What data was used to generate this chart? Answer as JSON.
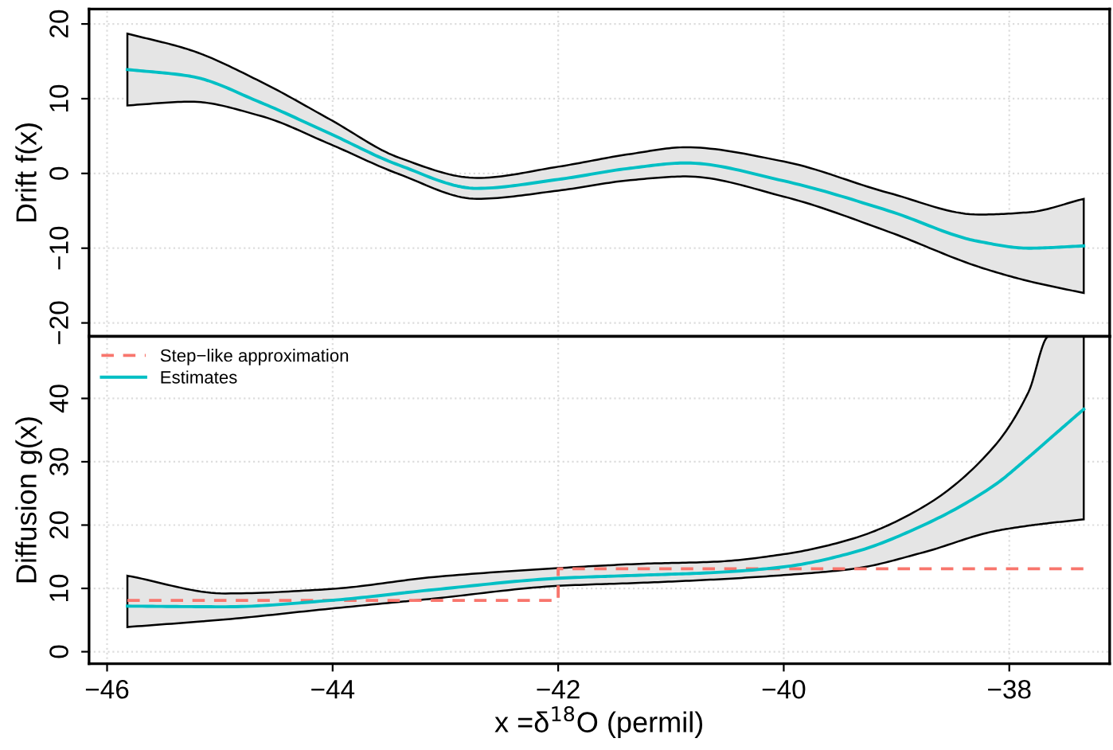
{
  "chart_data": [
    {
      "type": "line",
      "ylabel": "Drift f(x)",
      "xlim": [
        -46.16,
        -37.11
      ],
      "ylim": [
        -21.8,
        22
      ],
      "xticks": [
        {
          "value": -46,
          "label": null
        },
        {
          "value": -44,
          "label": null
        },
        {
          "value": -42,
          "label": null
        },
        {
          "value": -40,
          "label": null
        },
        {
          "value": -38,
          "label": null
        }
      ],
      "yticks": [
        {
          "value": -20,
          "label": "−20"
        },
        {
          "value": -10,
          "label": "−10"
        },
        0,
        10,
        20
      ],
      "tick_labels": "y",
      "grid": true,
      "legend": false,
      "series": [
        {
          "color": "#00bfc4",
          "x": [
            -45.82,
            -45.26,
            -44.64,
            -44.02,
            -43.41,
            -42.72,
            -42.0,
            -41.36,
            -40.87,
            -40.0,
            -39.07,
            -38.27,
            -37.83,
            -37.34
          ],
          "values": [
            13.9,
            13.0,
            9.5,
            5.3,
            1.1,
            -2.0,
            -0.8,
            0.7,
            1.4,
            -1.0,
            -5.0,
            -9.1,
            -10.0,
            -9.7
          ],
          "lower": [
            9.1,
            9.6,
            7.7,
            3.9,
            -0.1,
            -3.4,
            -2.3,
            -0.9,
            -0.4,
            -3.1,
            -7.8,
            -12.5,
            -14.4,
            -16.0
          ],
          "upper": [
            18.7,
            16.5,
            12.3,
            7.2,
            2.1,
            -0.6,
            0.9,
            2.6,
            3.5,
            1.6,
            -2.6,
            -5.5,
            -5.2,
            -3.4
          ]
        }
      ]
    },
    {
      "type": "line",
      "xlabel": "x =δ$^{18}$O (permil)",
      "ylabel": "Diffusion g(x)",
      "xlim": [
        -46.16,
        -37.11
      ],
      "ylim": [
        -1.9,
        49.8
      ],
      "xticks": [
        {
          "value": -46,
          "label": "−46"
        },
        {
          "value": -44,
          "label": "−44"
        },
        {
          "value": -42,
          "label": "−42"
        },
        {
          "value": -40,
          "label": "−40"
        },
        {
          "value": -38,
          "label": "−38"
        }
      ],
      "yticks": [
        0,
        10,
        20,
        30,
        40
      ],
      "grid": true,
      "legend": "top left",
      "series": [
        {
          "name": "Step−like approximation",
          "type": "step",
          "color": "#f8766d",
          "line_style": "dashed",
          "x": [
            -45.82,
            -42.0,
            -37.34
          ],
          "values": [
            8.1,
            13.1,
            13.1
          ]
        },
        {
          "name": "Estimates",
          "color": "#00bfc4",
          "x": [
            -45.82,
            -44.95,
            -44.02,
            -43.1,
            -42.0,
            -41.24,
            -40.62,
            -40.0,
            -39.38,
            -38.76,
            -38.14,
            -37.83,
            -37.65,
            -37.34
          ],
          "values": [
            7.2,
            7.1,
            8.1,
            9.8,
            11.6,
            12.1,
            12.5,
            13.4,
            15.7,
            20.0,
            26.2,
            30.7,
            33.5,
            38.3
          ],
          "lower": [
            3.9,
            5.1,
            6.8,
            8.4,
            10.4,
            10.9,
            11.4,
            12.1,
            13.1,
            15.7,
            19.0,
            19.9,
            20.3,
            20.9
          ],
          "upper": [
            12.0,
            9.2,
            9.9,
            11.8,
            13.2,
            13.9,
            14.2,
            15.4,
            17.9,
            22.9,
            32.3,
            41.0,
            49.8,
            49.8
          ]
        }
      ]
    }
  ]
}
